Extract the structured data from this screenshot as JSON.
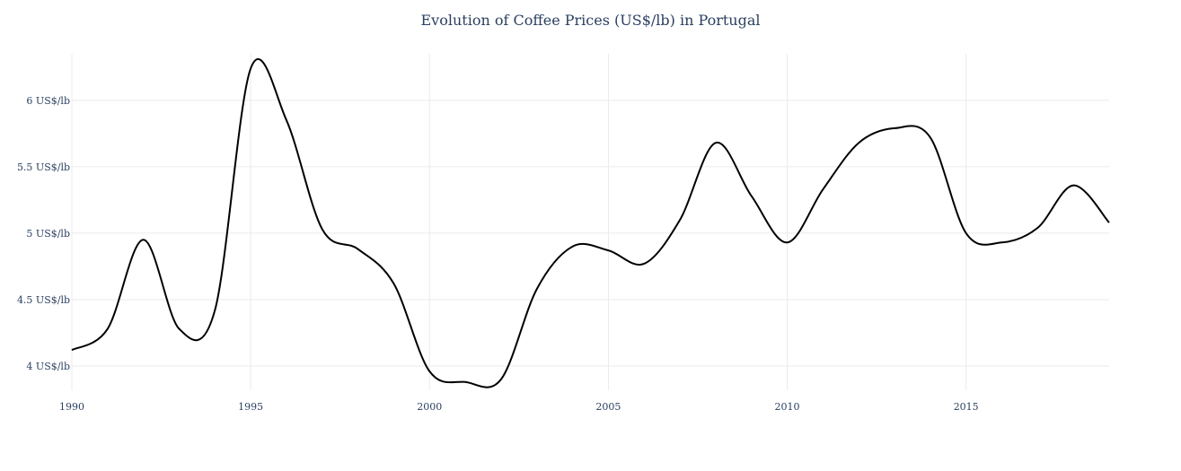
{
  "chart_data": {
    "type": "line",
    "title": "Evolution of Coffee Prices (US$/lb) in Portugal",
    "xlabel": "",
    "ylabel": "",
    "xlim": [
      1990,
      2019
    ],
    "ylim": [
      3.75,
      6.35
    ],
    "x_ticks": [
      1990,
      1995,
      2000,
      2005,
      2010,
      2015
    ],
    "y_ticks": [
      {
        "value": 4,
        "label": "4 US$/lb"
      },
      {
        "value": 4.5,
        "label": "4.5 US$/lb"
      },
      {
        "value": 5,
        "label": "5 US$/lb"
      },
      {
        "value": 5.5,
        "label": "5.5 US$/lb"
      },
      {
        "value": 6,
        "label": "6 US$/lb"
      }
    ],
    "grid": true,
    "line_color": "#000000",
    "series": [
      {
        "x": [
          1990,
          1991,
          1992,
          1993,
          1994,
          1995,
          1996,
          1997,
          1998,
          1999,
          2000,
          2001,
          2002,
          2003,
          2004,
          2005,
          2006,
          2007,
          2008,
          2009,
          2010,
          2011,
          2012,
          2013,
          2014,
          2015,
          2016,
          2017,
          2018,
          2019
        ],
        "y": [
          4.12,
          4.28,
          4.95,
          4.28,
          4.42,
          6.24,
          5.85,
          5.03,
          4.88,
          4.62,
          3.96,
          3.88,
          3.9,
          4.58,
          4.9,
          4.87,
          4.77,
          5.1,
          5.68,
          5.28,
          4.93,
          5.33,
          5.68,
          5.79,
          5.72,
          5.0,
          4.93,
          5.04,
          5.36,
          5.08
        ]
      }
    ]
  }
}
